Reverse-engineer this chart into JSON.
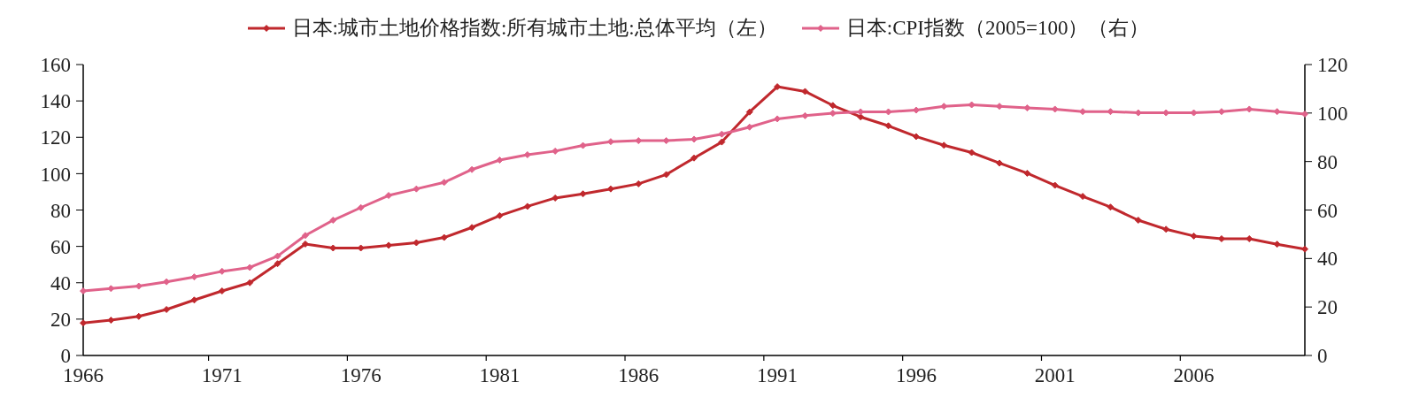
{
  "chart_data": {
    "type": "line",
    "categories": [
      "1966",
      null,
      null,
      null,
      null,
      "1971",
      null,
      null,
      null,
      null,
      "1976",
      null,
      null,
      null,
      null,
      "1981",
      null,
      null,
      null,
      null,
      "1986",
      null,
      null,
      null,
      null,
      "1991",
      null,
      null,
      null,
      null,
      "1996",
      null,
      null,
      null,
      null,
      "2001",
      null,
      null,
      null,
      null,
      "2006",
      null,
      null,
      null,
      null
    ],
    "series": [
      {
        "name": "日本:城市土地价格指数:所有城市土地:总体平均（左）",
        "color": "#c0282d",
        "values": [
          17.9,
          19.4,
          21.5,
          25.3,
          30.5,
          35.5,
          40,
          50.5,
          61.3,
          59.1,
          59.1,
          60.6,
          62,
          64.9,
          70.4,
          76.9,
          82,
          86.6,
          88.9,
          91.6,
          94.4,
          99.5,
          108.6,
          117.4,
          133.9,
          147.8,
          145.2,
          137.5,
          131.2,
          126.3,
          120.4,
          115.6,
          111.6,
          105.8,
          100.2,
          93.6,
          87.5,
          81.6,
          74.4,
          69.4,
          65.7,
          64.2,
          64.2,
          61.2,
          58.5
        ]
      },
      {
        "name": "日本:CPI指数（2005=100）（右）",
        "color": "#e0628a",
        "axis": "y2",
        "values": [
          26.6,
          27.6,
          28.6,
          30.4,
          32.4,
          34.7,
          36.3,
          41,
          49.5,
          55.8,
          61,
          66,
          68.7,
          71.4,
          76.7,
          80.6,
          82.8,
          84.3,
          86.6,
          88.2,
          88.6,
          88.6,
          89.2,
          91.3,
          94.2,
          97.6,
          98.9,
          99.9,
          100.5,
          100.5,
          101.2,
          102.8,
          103.4,
          102.8,
          102.1,
          101.6,
          100.6,
          100.6,
          100.1,
          100.1,
          100.1,
          100.6,
          101.6,
          100.6,
          99.6
        ]
      }
    ],
    "ylim": [
      0,
      160
    ],
    "yticks": [
      0,
      20,
      40,
      60,
      80,
      100,
      120,
      140,
      160
    ],
    "y2lim": [
      0,
      120
    ],
    "y2ticks": [
      0,
      20,
      40,
      60,
      80,
      100,
      120
    ],
    "legend": "top",
    "marker": "diamond",
    "line_style": "solid",
    "grid": false
  }
}
